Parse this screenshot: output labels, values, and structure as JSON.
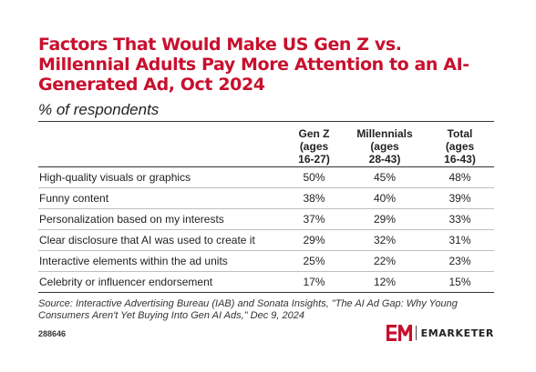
{
  "chart_data": {
    "type": "table",
    "title": "Factors That Would Make US Gen Z vs. Millennial Adults Pay More Attention to an AI-Generated Ad, Oct 2024",
    "subtitle": "% of respondents",
    "columns": [
      {
        "label": "",
        "lines": [
          ""
        ]
      },
      {
        "label": "Gen Z (ages 16-27)",
        "lines": [
          "Gen Z",
          "(ages",
          "16-27)"
        ]
      },
      {
        "label": "Millennials (ages 28-43)",
        "lines": [
          "Millennials",
          "(ages",
          "28-43)"
        ]
      },
      {
        "label": "Total (ages 16-43)",
        "lines": [
          "Total",
          "(ages",
          "16-43)"
        ]
      }
    ],
    "rows": [
      {
        "factor": "High-quality visuals or graphics",
        "values": [
          "50%",
          "45%",
          "48%"
        ]
      },
      {
        "factor": "Funny content",
        "values": [
          "38%",
          "40%",
          "39%"
        ]
      },
      {
        "factor": "Personalization based on my interests",
        "values": [
          "37%",
          "29%",
          "33%"
        ]
      },
      {
        "factor": "Clear disclosure that AI was used to create it",
        "values": [
          "29%",
          "32%",
          "31%"
        ]
      },
      {
        "factor": "Interactive elements within the ad units",
        "values": [
          "25%",
          "22%",
          "23%"
        ]
      },
      {
        "factor": "Celebrity or influencer endorsement",
        "values": [
          "17%",
          "12%",
          "15%"
        ]
      }
    ],
    "source": "Source: Interactive Advertising Bureau (IAB) and Sonata Insights, \"The AI Ad Gap: Why Young Consumers Aren't Yet Buying Into Gen AI Ads,\" Dec 9, 2024",
    "chart_id": "288646"
  },
  "brand": {
    "name": "EMARKETER",
    "accent_color": "#c8102e",
    "logo_icon": "em-logo-icon"
  }
}
